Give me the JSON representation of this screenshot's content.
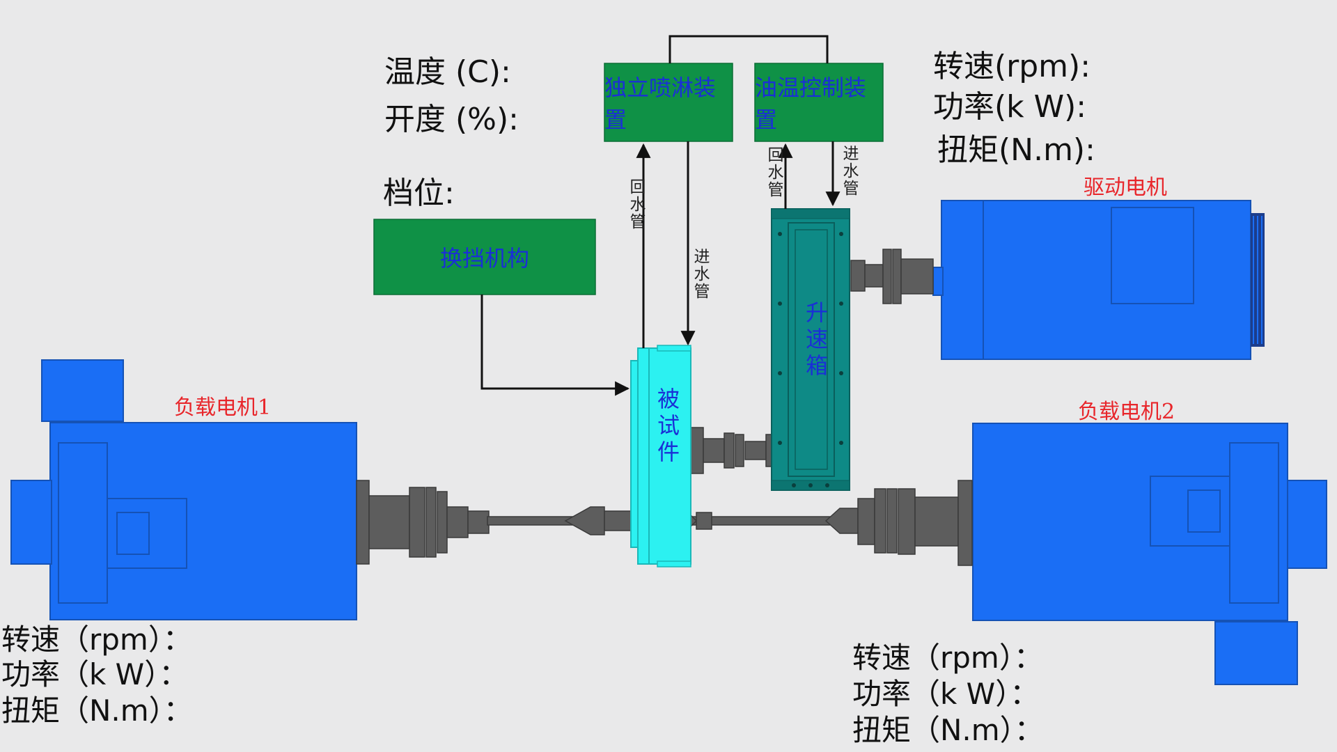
{
  "top_left_readout": {
    "temperature": "温度 (C):",
    "opening": "开度 (%):",
    "gear": "档位:"
  },
  "top_right_readout": {
    "speed": "转速(rpm):",
    "power": "功率(k W):",
    "torque": "扭矩(N.m):"
  },
  "boxes": {
    "spray": "独立喷淋装置",
    "oil_temp": "油温控制装置",
    "shift": "换挡机构",
    "test_piece": "被试件",
    "gearbox": "升速箱"
  },
  "pipes": {
    "return_left": "回水管",
    "inlet_left": "进水管",
    "return_right": "回水管",
    "inlet_right": "进水管"
  },
  "motors": {
    "drive": "驱动电机",
    "load1": "负载电机1",
    "load2": "负载电机2"
  },
  "bottom_left_readout": {
    "speed": "转速（rpm）：",
    "power": "功率（k W）：",
    "torque": "扭矩（N.m）："
  },
  "bottom_right_readout": {
    "speed": "转速（rpm）：",
    "power": "功率（k W）：",
    "torque": "扭矩（N.m）："
  },
  "colors": {
    "motor_blue": "#1a6ef5",
    "box_green": "#0f9146",
    "test_cyan": "#2cf1f1",
    "gearbox_teal": "#0e8a86",
    "shaft_gray": "#5d5d5d",
    "label_red": "#e8262b",
    "box_text_blue": "#1a2fd6"
  }
}
